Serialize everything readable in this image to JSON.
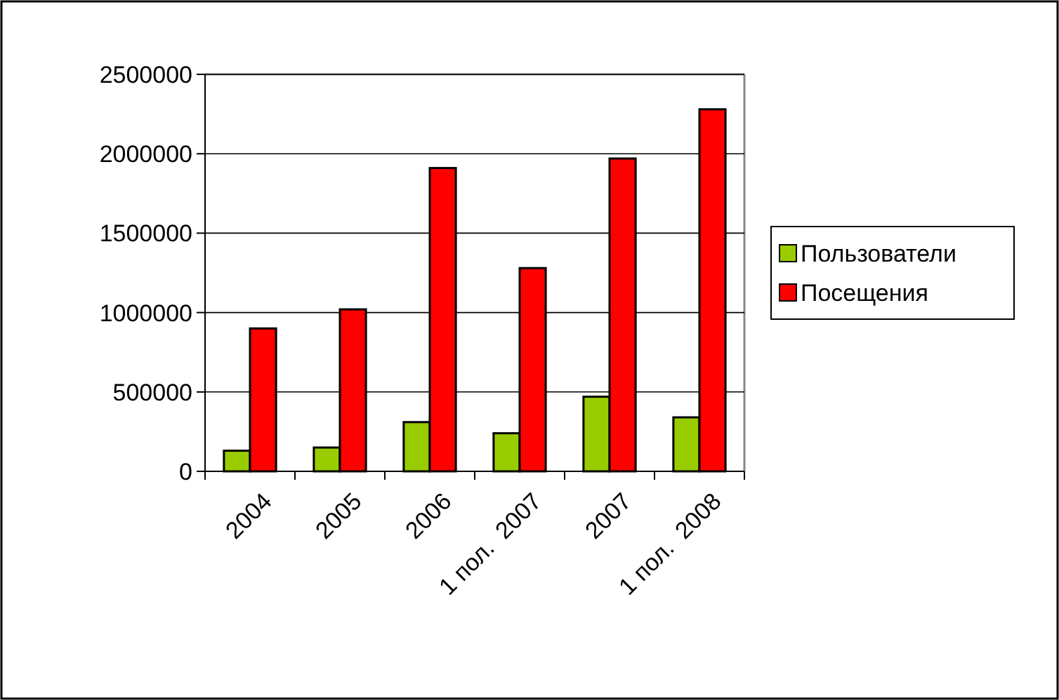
{
  "chart_data": {
    "type": "bar",
    "categories": [
      "2004",
      "2005",
      "2006",
      "1 пол.  2007",
      "2007",
      "1 пол.  2008"
    ],
    "series": [
      {
        "name": "Пользователи",
        "color": "#99cc00",
        "values": [
          130000,
          150000,
          310000,
          240000,
          470000,
          340000
        ]
      },
      {
        "name": "Посещения",
        "color": "#ff0000",
        "values": [
          900000,
          1020000,
          1910000,
          1280000,
          1970000,
          2280000
        ]
      }
    ],
    "ylim": [
      0,
      2500000
    ],
    "yticks": [
      0,
      500000,
      1000000,
      1500000,
      2000000,
      2500000
    ],
    "grid": "y",
    "legend": "right"
  }
}
